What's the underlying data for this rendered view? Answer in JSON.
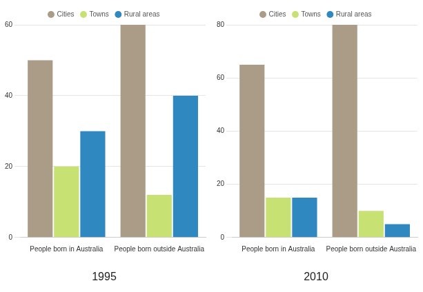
{
  "chart_data": [
    {
      "type": "bar",
      "title": "1995",
      "categories": [
        "People born in Australia",
        "People born outside Australia"
      ],
      "series": [
        {
          "name": "Cities",
          "color": "#ab9c88",
          "values": [
            50,
            60
          ]
        },
        {
          "name": "Towns",
          "color": "#c8e173",
          "values": [
            20,
            12
          ]
        },
        {
          "name": "Rural areas",
          "color": "#2f88bf",
          "values": [
            30,
            40
          ]
        }
      ],
      "ylim": [
        0,
        60
      ],
      "yticks": [
        0,
        20,
        40,
        60
      ],
      "grid": true,
      "legend": "top"
    },
    {
      "type": "bar",
      "title": "2010",
      "categories": [
        "People born in Australia",
        "People born outside Australia"
      ],
      "series": [
        {
          "name": "Cities",
          "color": "#ab9c88",
          "values": [
            65,
            80
          ]
        },
        {
          "name": "Towns",
          "color": "#c8e173",
          "values": [
            15,
            10
          ]
        },
        {
          "name": "Rural areas",
          "color": "#2f88bf",
          "values": [
            15,
            5
          ]
        }
      ],
      "ylim": [
        0,
        80
      ],
      "yticks": [
        0,
        20,
        40,
        60,
        80
      ],
      "grid": true,
      "legend": "top"
    }
  ]
}
